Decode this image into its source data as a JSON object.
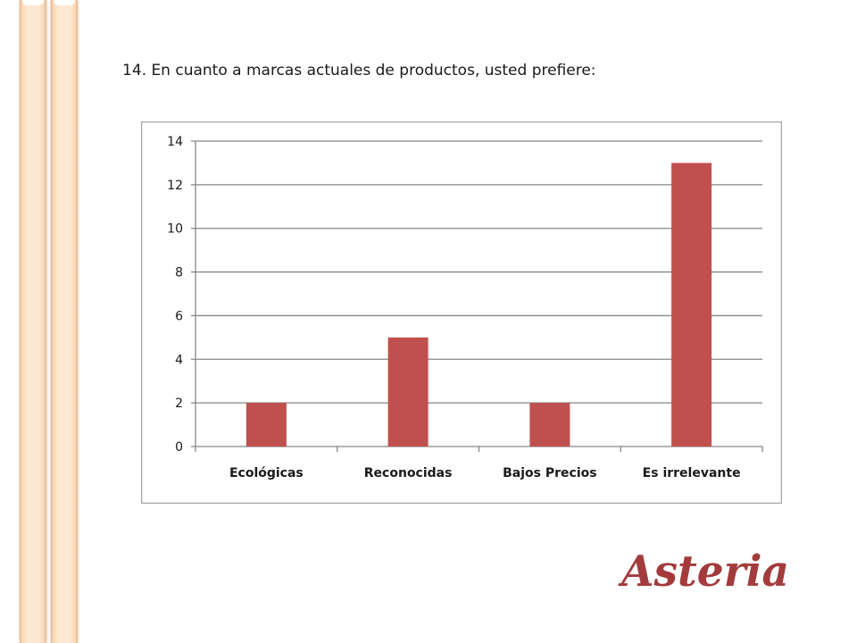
{
  "slide": {
    "title": "14. En cuanto a marcas actuales de productos, usted prefiere:"
  },
  "logo": {
    "text": "Asteria",
    "color": "#a33b3c"
  },
  "colors": {
    "bar": "#c0504d",
    "grid": "#868686",
    "frame": "#a6a6a6",
    "stripe": "#f8d9b8"
  },
  "chart_data": {
    "type": "bar",
    "categories": [
      "Ecológicas",
      "Reconocidas",
      "Bajos Precios",
      "Es irrelevante"
    ],
    "values": [
      2,
      5,
      2,
      13
    ],
    "ylim": [
      0,
      14
    ],
    "yticks": [
      0,
      2,
      4,
      6,
      8,
      10,
      12,
      14
    ],
    "grid": true,
    "legend": "none",
    "title": "",
    "xlabel": "",
    "ylabel": ""
  }
}
